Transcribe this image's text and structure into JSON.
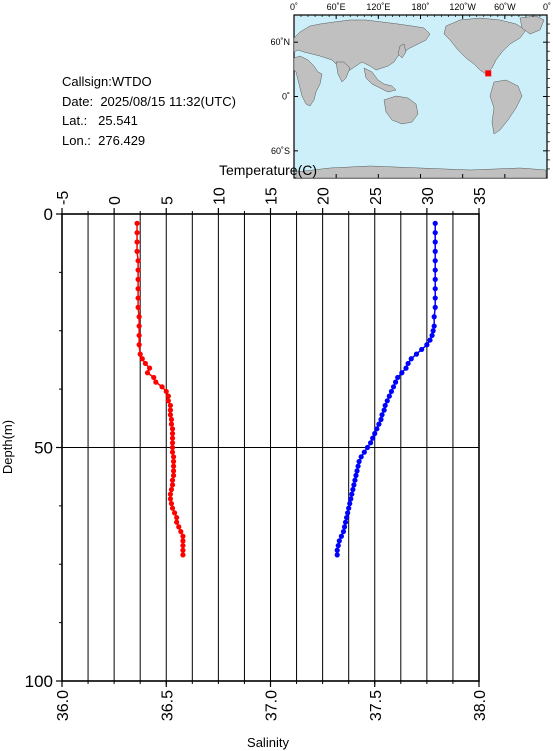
{
  "station": {
    "callsign_label": "Callsign:",
    "callsign": "WTDO",
    "date_label": "Date:",
    "date": "2025/08/15 11:32(UTC)",
    "lat_label": "Lat.:",
    "lat": "25.541",
    "lon_label": "Lon.:",
    "lon": "276.429"
  },
  "map": {
    "lon_labels": [
      "0˚",
      "60˚E",
      "120˚E",
      "180˚",
      "120˚W",
      "60˚W",
      "0˚"
    ],
    "lat_labels": [
      "60˚N",
      "0˚",
      "60˚S"
    ],
    "ocean_color": "#cdeff9",
    "land_color": "#c0c0c0",
    "marker_color": "#ff0000",
    "marker": {
      "lat": 25.541,
      "lon": 276.429
    }
  },
  "chart_data": {
    "type": "line",
    "title": "",
    "depth_axis": {
      "label": "Depth(m)",
      "range": [
        0,
        100
      ],
      "ticks": [
        "0",
        "50",
        "100"
      ],
      "reversed": true
    },
    "temperature_axis": {
      "label": "Temperature(C)",
      "range": [
        -5,
        35
      ],
      "ticks": [
        "-5",
        "0",
        "5",
        "10",
        "15",
        "20",
        "25",
        "30",
        "35"
      ],
      "position": "top"
    },
    "salinity_axis": {
      "label": "Salinity",
      "range": [
        36.0,
        38.0
      ],
      "ticks": [
        "36.0",
        "36.5",
        "37.0",
        "37.5",
        "38.0"
      ],
      "position": "bottom"
    },
    "grid": true,
    "series": [
      {
        "color": "#ff0000",
        "axis": "salinity",
        "depth": [
          2,
          4,
          6,
          8,
          10,
          12,
          14,
          16,
          18,
          20,
          22,
          24,
          26,
          28,
          30,
          31,
          32,
          33,
          34,
          35,
          36,
          37,
          38,
          39,
          40,
          41,
          42,
          43,
          44,
          45,
          46,
          47,
          48,
          49,
          50,
          51,
          52,
          53,
          54,
          55,
          56,
          57,
          58,
          59,
          60,
          61,
          62,
          63,
          64,
          65,
          66,
          67,
          68,
          69,
          70,
          71,
          72,
          73
        ],
        "values": [
          36.36,
          36.36,
          36.36,
          36.36,
          36.365,
          36.365,
          36.365,
          36.365,
          36.365,
          36.365,
          36.37,
          36.37,
          36.37,
          36.37,
          36.375,
          36.385,
          36.4,
          36.42,
          36.41,
          36.44,
          36.45,
          36.48,
          36.5,
          36.51,
          36.51,
          36.52,
          36.52,
          36.52,
          36.525,
          36.525,
          36.53,
          36.53,
          36.53,
          36.53,
          36.53,
          36.53,
          36.535,
          36.535,
          36.535,
          36.535,
          36.535,
          36.53,
          36.53,
          36.525,
          36.52,
          36.52,
          36.525,
          36.53,
          36.54,
          36.55,
          36.55,
          36.56,
          36.57,
          36.58,
          36.58,
          36.58,
          36.58,
          36.58
        ]
      },
      {
        "color": "#0000ff",
        "axis": "temperature",
        "depth": [
          2,
          4,
          6,
          8,
          10,
          12,
          14,
          16,
          18,
          20,
          22,
          24,
          25,
          26,
          27,
          28,
          29,
          30,
          31,
          32,
          33,
          34,
          35,
          36,
          37,
          38,
          39,
          40,
          41,
          42,
          43,
          44,
          45,
          46,
          47,
          48,
          49,
          50,
          51,
          52,
          53,
          54,
          55,
          56,
          57,
          58,
          59,
          60,
          61,
          62,
          63,
          64,
          65,
          66,
          67,
          68,
          69,
          70,
          71,
          72,
          73
        ],
        "values": [
          30.8,
          30.8,
          30.8,
          30.8,
          30.8,
          30.8,
          30.8,
          30.8,
          30.8,
          30.8,
          30.7,
          30.7,
          30.6,
          30.5,
          30.3,
          30.0,
          29.5,
          29.0,
          28.5,
          28.2,
          28.0,
          27.6,
          27.2,
          27.0,
          26.8,
          26.6,
          26.4,
          26.2,
          26.0,
          25.9,
          25.7,
          25.6,
          25.4,
          25.2,
          25.0,
          24.8,
          24.6,
          24.3,
          24.0,
          23.7,
          23.5,
          23.4,
          23.3,
          23.2,
          23.1,
          23.0,
          22.9,
          22.8,
          22.7,
          22.6,
          22.5,
          22.4,
          22.3,
          22.2,
          22.1,
          22.0,
          21.8,
          21.6,
          21.5,
          21.4,
          21.4
        ]
      }
    ]
  }
}
